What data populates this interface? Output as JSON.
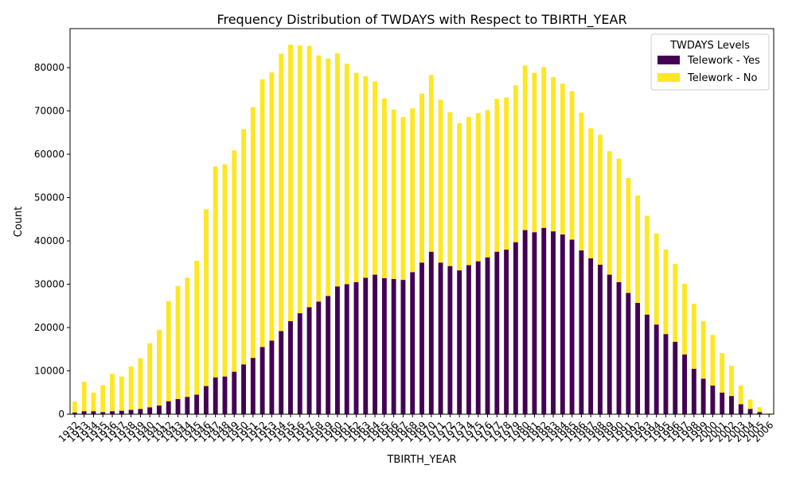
{
  "chart_data": {
    "type": "bar",
    "stacked": true,
    "title": "Frequency Distribution of TWDAYS with Respect to TBIRTH_YEAR",
    "xlabel": "TBIRTH_YEAR",
    "ylabel": "Count",
    "ylim": [
      0,
      89000
    ],
    "yticks": [
      0,
      10000,
      20000,
      30000,
      40000,
      50000,
      60000,
      70000,
      80000
    ],
    "grid": false,
    "legend": {
      "title": "TWDAYS Levels",
      "placement": "top-right"
    },
    "categories": [
      "1932",
      "1933",
      "1934",
      "1935",
      "1936",
      "1937",
      "1938",
      "1939",
      "1940",
      "1941",
      "1942",
      "1943",
      "1944",
      "1945",
      "1946",
      "1947",
      "1948",
      "1949",
      "1950",
      "1951",
      "1952",
      "1953",
      "1954",
      "1955",
      "1956",
      "1957",
      "1958",
      "1959",
      "1960",
      "1961",
      "1962",
      "1963",
      "1964",
      "1965",
      "1966",
      "1967",
      "1968",
      "1969",
      "1970",
      "1971",
      "1972",
      "1973",
      "1974",
      "1975",
      "1976",
      "1977",
      "1978",
      "1979",
      "1980",
      "1981",
      "1982",
      "1983",
      "1984",
      "1985",
      "1986",
      "1987",
      "1988",
      "1989",
      "1990",
      "1991",
      "1992",
      "1993",
      "1994",
      "1995",
      "1996",
      "1997",
      "1998",
      "1999",
      "2000",
      "2001",
      "2002",
      "2003",
      "2004",
      "2005",
      "2006"
    ],
    "series": [
      {
        "name": "Telework - Yes",
        "color": "#440154",
        "values": [
          400,
          700,
          700,
          500,
          700,
          800,
          1000,
          1200,
          1600,
          2000,
          3000,
          3500,
          4000,
          4500,
          6500,
          8500,
          8700,
          9800,
          11500,
          13000,
          15500,
          17000,
          19200,
          21500,
          23300,
          24700,
          26000,
          27300,
          29500,
          30000,
          30500,
          31500,
          32200,
          31400,
          31200,
          31000,
          32800,
          35000,
          37500,
          35000,
          34200,
          33200,
          34400,
          35300,
          36200,
          37500,
          38000,
          39700,
          42500,
          42000,
          43000,
          42200,
          41500,
          40300,
          37800,
          36000,
          34500,
          32200,
          30500,
          28000,
          25700,
          23000,
          20700,
          18500,
          16700,
          13800,
          10500,
          8200,
          6600,
          5000,
          4200,
          2300,
          1200,
          500,
          0
        ]
      },
      {
        "name": "Telework - No",
        "color": "#fde725",
        "values": [
          2500,
          6800,
          4300,
          6200,
          8600,
          7900,
          10000,
          11700,
          14800,
          17500,
          23100,
          26100,
          27500,
          30900,
          40800,
          48700,
          49000,
          51100,
          54300,
          57900,
          61800,
          61900,
          64000,
          63800,
          61800,
          60300,
          56800,
          54800,
          53800,
          50900,
          48300,
          46500,
          44600,
          41500,
          39100,
          37600,
          37800,
          39000,
          40800,
          37600,
          35500,
          34000,
          34200,
          34200,
          34000,
          35300,
          35100,
          36200,
          38000,
          36800,
          37100,
          35600,
          34800,
          34200,
          31800,
          30000,
          30000,
          28500,
          28500,
          26500,
          24800,
          22800,
          21000,
          19500,
          18000,
          16300,
          15000,
          13300,
          11700,
          9100,
          7000,
          4300,
          2200,
          1100,
          200
        ]
      }
    ]
  }
}
